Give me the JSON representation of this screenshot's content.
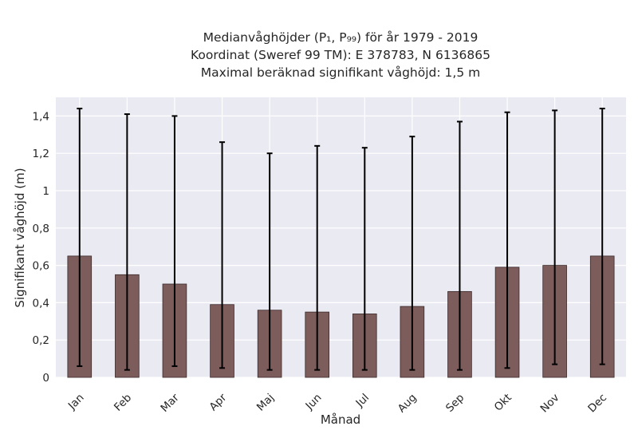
{
  "chart_data": {
    "type": "bar",
    "title_lines": [
      "Medianvåghöjder (P₁, P₉₉) för år 1979 - 2019",
      "Koordinat (Sweref 99 TM): E 378783, N 6136865",
      "Maximal beräknad signifikant våghöjd: 1,5 m"
    ],
    "xlabel": "Månad",
    "ylabel": "Signifikant våghöjd (m)",
    "categories": [
      "Jan",
      "Feb",
      "Mar",
      "Apr",
      "Maj",
      "Jun",
      "Jul",
      "Aug",
      "Sep",
      "Okt",
      "Nov",
      "Dec"
    ],
    "series": [
      {
        "values": [
          0.65,
          0.55,
          0.5,
          0.39,
          0.36,
          0.35,
          0.34,
          0.38,
          0.46,
          0.59,
          0.6,
          0.65
        ],
        "error_low": [
          0.06,
          0.04,
          0.06,
          0.05,
          0.04,
          0.04,
          0.04,
          0.04,
          0.04,
          0.05,
          0.07,
          0.07
        ],
        "error_high": [
          1.44,
          1.41,
          1.4,
          1.26,
          1.2,
          1.24,
          1.23,
          1.29,
          1.37,
          1.42,
          1.43,
          1.44
        ]
      }
    ],
    "ylim": [
      0,
      1.5
    ],
    "yticks": [
      0,
      0.2,
      0.4,
      0.6,
      0.8,
      1,
      1.2,
      1.4
    ],
    "ytick_labels": [
      "0",
      "0,2",
      "0,4",
      "0,6",
      "0,8",
      "1",
      "1,2",
      "1,4"
    ],
    "grid": true,
    "colors": {
      "bar": "#7d5c5c",
      "bar_edge": "#3a2a2a",
      "errorbar": "#000000",
      "plot_background": "#eaeaf2",
      "grid": "#ffffff"
    }
  }
}
